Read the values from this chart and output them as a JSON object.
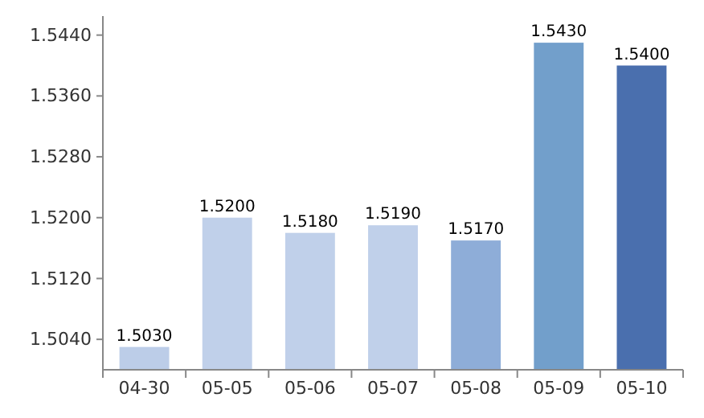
{
  "chart_data": {
    "type": "bar",
    "categories": [
      "04-30",
      "05-05",
      "05-06",
      "05-07",
      "05-08",
      "05-09",
      "05-10"
    ],
    "values": [
      1.503,
      1.52,
      1.518,
      1.519,
      1.517,
      1.543,
      1.54
    ],
    "value_labels": [
      "1.5030",
      "1.5200",
      "1.5180",
      "1.5190",
      "1.5170",
      "1.5430",
      "1.5400"
    ],
    "colors": [
      "#bccde8",
      "#c0d0ea",
      "#c0d0ea",
      "#c0d0ea",
      "#8eadd8",
      "#729fcb",
      "#4a6fae"
    ],
    "ylim": [
      1.5,
      1.5465
    ],
    "yticks": [
      {
        "value": 1.504,
        "label": "1.5040"
      },
      {
        "value": 1.512,
        "label": "1.5120"
      },
      {
        "value": 1.52,
        "label": "1.5200"
      },
      {
        "value": 1.528,
        "label": "1.5280"
      },
      {
        "value": 1.536,
        "label": "1.5360"
      },
      {
        "value": 1.544,
        "label": "1.5440"
      }
    ]
  }
}
